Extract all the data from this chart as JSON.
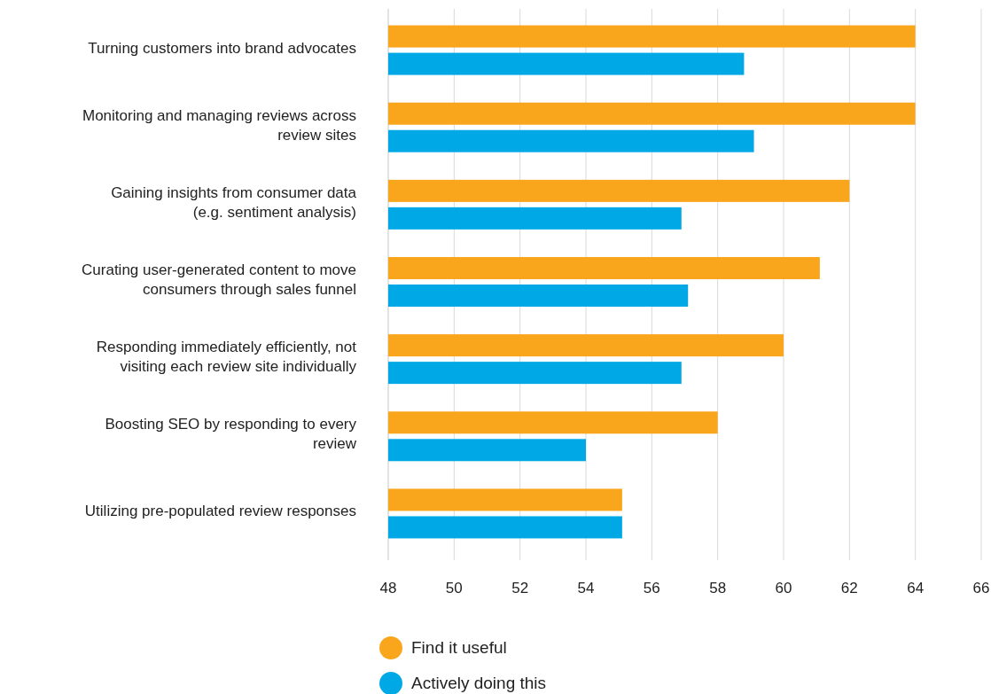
{
  "chart_data": {
    "type": "bar",
    "orientation": "horizontal",
    "categories": [
      "Turning customers into brand advocates",
      "Monitoring and managing reviews across review sites",
      "Gaining insights from consumer data (e.g. sentiment analysis)",
      "Curating user-generated content to move consumers through sales funnel",
      "Responding immediately efficiently, not visiting each review site individually",
      "Boosting SEO by responding to every review",
      "Utilizing pre-populated review responses"
    ],
    "series": [
      {
        "name": "Find it useful",
        "color": "#f9a61c",
        "values": [
          64,
          64,
          62,
          61.1,
          60,
          58,
          55.1
        ]
      },
      {
        "name": "Actively doing this",
        "color": "#00a9e6",
        "values": [
          58.8,
          59.1,
          56.9,
          57.1,
          56.9,
          54,
          55.1
        ]
      }
    ],
    "xlim": [
      48,
      66
    ],
    "xticks": [
      48,
      50,
      52,
      54,
      56,
      58,
      60,
      62,
      64,
      66
    ],
    "grid": "x",
    "legend": "bottom"
  }
}
